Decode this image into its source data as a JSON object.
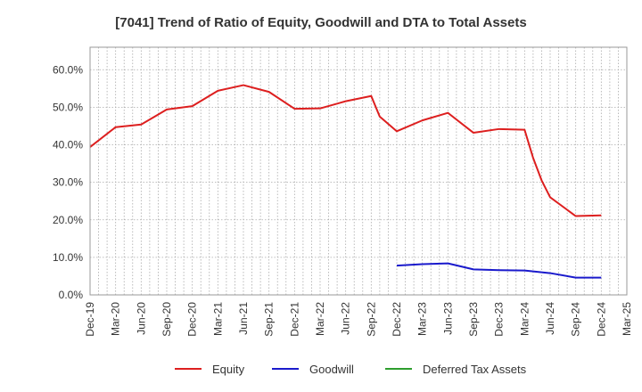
{
  "chart_data": {
    "type": "line",
    "title": "[7041]  Trend of Ratio of Equity, Goodwill and DTA to Total Assets",
    "xlabel": "",
    "ylabel": "",
    "ylim": [
      0,
      66
    ],
    "y_ticks": [
      0,
      10,
      20,
      30,
      40,
      50,
      60
    ],
    "y_tick_labels": [
      "0.0%",
      "10.0%",
      "20.0%",
      "30.0%",
      "40.0%",
      "50.0%",
      "60.0%"
    ],
    "categories": [
      "Dec-19",
      "Mar-20",
      "Jun-20",
      "Sep-20",
      "Dec-20",
      "Mar-21",
      "Jun-21",
      "Sep-21",
      "Dec-21",
      "Mar-22",
      "Jun-22",
      "Sep-22",
      "Dec-22",
      "Mar-23",
      "Jun-23",
      "Sep-23",
      "Dec-23",
      "Mar-24",
      "Jun-24",
      "Sep-24",
      "Dec-24",
      "Mar-25"
    ],
    "x_months_start": "Dec-19",
    "x_months_end": "Mar-25",
    "series": [
      {
        "name": "Equity",
        "color": "#dd1f1f",
        "points": [
          [
            0,
            39.4
          ],
          [
            3,
            44.7
          ],
          [
            6,
            45.4
          ],
          [
            9,
            49.4
          ],
          [
            12,
            50.3
          ],
          [
            15,
            54.4
          ],
          [
            18,
            55.9
          ],
          [
            21,
            54.1
          ],
          [
            24,
            49.6
          ],
          [
            27,
            49.7
          ],
          [
            30,
            51.6
          ],
          [
            33,
            53.0
          ],
          [
            34,
            47.5
          ],
          [
            36,
            43.6
          ],
          [
            39,
            46.5
          ],
          [
            42,
            48.5
          ],
          [
            45,
            43.2
          ],
          [
            48,
            44.2
          ],
          [
            51,
            44.0
          ],
          [
            52,
            36.5
          ],
          [
            53,
            30.5
          ],
          [
            54,
            26.0
          ],
          [
            57,
            21.0
          ],
          [
            60,
            21.2
          ]
        ]
      },
      {
        "name": "Goodwill",
        "color": "#1a1acc",
        "points": [
          [
            36,
            7.8
          ],
          [
            39,
            8.2
          ],
          [
            42,
            8.4
          ],
          [
            45,
            6.8
          ],
          [
            48,
            6.6
          ],
          [
            51,
            6.5
          ],
          [
            54,
            5.8
          ],
          [
            57,
            4.6
          ],
          [
            60,
            4.6
          ]
        ]
      },
      {
        "name": "Deferred Tax Assets",
        "color": "#2e9e2e",
        "points": []
      }
    ],
    "legend_position": "bottom"
  }
}
